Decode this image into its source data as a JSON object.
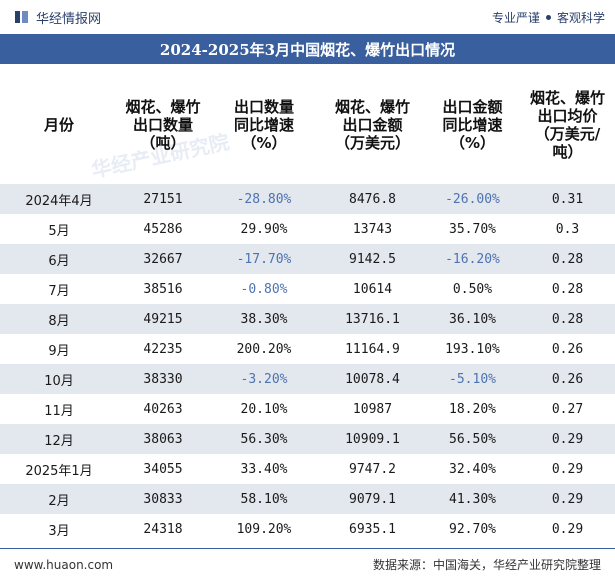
{
  "header": {
    "brand": "华经情报网",
    "tagline_left": "专业严谨",
    "tagline_right": "客观科学"
  },
  "title": "2024-2025年3月中国烟花、爆竹出口情况",
  "table": {
    "columns": [
      "月份",
      "烟花、爆竹\n出口数量\n（吨）",
      "出口数量\n同比增速\n（%）",
      "烟花、爆竹\n出口金额\n（万美元）",
      "出口金额\n同比增速\n（%）",
      "烟花、爆竹\n出口均价\n（万美元/\n吨）"
    ],
    "rows": [
      [
        "2024年4月",
        "27151",
        "-28.80%",
        "8476.8",
        "-26.00%",
        "0.31"
      ],
      [
        "5月",
        "45286",
        "29.90%",
        "13743",
        "35.70%",
        "0.3"
      ],
      [
        "6月",
        "32667",
        "-17.70%",
        "9142.5",
        "-16.20%",
        "0.28"
      ],
      [
        "7月",
        "38516",
        "-0.80%",
        "10614",
        "0.50%",
        "0.28"
      ],
      [
        "8月",
        "49215",
        "38.30%",
        "13716.1",
        "36.10%",
        "0.28"
      ],
      [
        "9月",
        "42235",
        "200.20%",
        "11164.9",
        "193.10%",
        "0.26"
      ],
      [
        "10月",
        "38330",
        "-3.20%",
        "10078.4",
        "-5.10%",
        "0.26"
      ],
      [
        "11月",
        "40263",
        "20.10%",
        "10987",
        "18.20%",
        "0.27"
      ],
      [
        "12月",
        "38063",
        "56.30%",
        "10909.1",
        "56.50%",
        "0.29"
      ],
      [
        "2025年1月",
        "34055",
        "33.40%",
        "9747.2",
        "32.40%",
        "0.29"
      ],
      [
        "2月",
        "30833",
        "58.10%",
        "9079.1",
        "41.30%",
        "0.29"
      ],
      [
        "3月",
        "24318",
        "109.20%",
        "6935.1",
        "92.70%",
        "0.29"
      ]
    ]
  },
  "footer": {
    "url": "www.huaon.com",
    "source": "数据来源：中国海关，华经产业研究院整理"
  },
  "watermark": "华经产业研究院",
  "colors": {
    "title_bar": "#3a5f9e",
    "row_alt": "#e3e7ee",
    "negative_text": "#4d73b0"
  }
}
